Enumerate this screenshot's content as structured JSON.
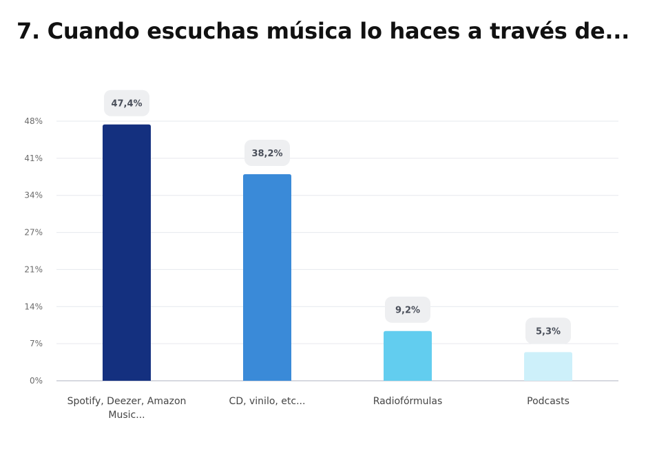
{
  "page": {
    "title": "7. Cuando escuchas música lo haces a través de..."
  },
  "chart_data": {
    "type": "bar",
    "title": "7. Cuando escuchas música lo haces a través de...",
    "xlabel": "",
    "ylabel": "",
    "categories": [
      [
        "Spotify, Deezer, Amazon",
        "Music..."
      ],
      [
        "CD, vinilo, etc..."
      ],
      [
        "Radiofórmulas"
      ],
      [
        "Podcasts"
      ]
    ],
    "values": [
      47.4,
      38.2,
      9.2,
      5.3
    ],
    "value_labels": [
      "47,4%",
      "38,2%",
      "9,2%",
      "5,3%"
    ],
    "colors": [
      "#14307f",
      "#3a8ad8",
      "#62cdef",
      "#cdf0fa"
    ],
    "yticks": [
      0,
      6.857,
      13.714,
      20.571,
      27.429,
      34.286,
      41.143,
      48
    ],
    "ytick_labels": [
      "0%",
      "7%",
      "14%",
      "21%",
      "27%",
      "34%",
      "41%",
      "48%"
    ],
    "ylim": [
      0,
      48
    ],
    "grid": true,
    "legend": "none"
  }
}
